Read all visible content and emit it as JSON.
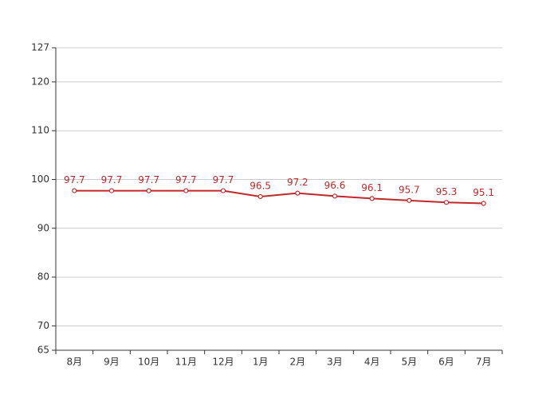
{
  "chart_data": {
    "type": "line",
    "categories": [
      "8月",
      "9月",
      "10月",
      "11月",
      "12月",
      "1月",
      "2月",
      "3月",
      "4月",
      "5月",
      "6月",
      "7月"
    ],
    "series": [
      {
        "color": "#c0282a",
        "values": [
          97.7,
          97.7,
          97.7,
          97.7,
          97.7,
          96.5,
          97.2,
          96.6,
          96.1,
          95.7,
          95.3,
          95.1
        ]
      }
    ],
    "ylim": [
      65,
      127
    ],
    "yticks": [
      65,
      70,
      80,
      90,
      100,
      110,
      120,
      127
    ],
    "grid": true
  }
}
